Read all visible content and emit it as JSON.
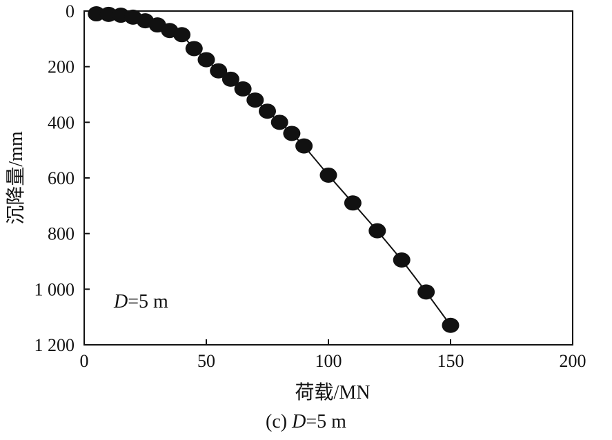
{
  "chart_data": {
    "type": "line",
    "xlabel": "荷载/MN",
    "ylabel": "沉降量/mm",
    "xlim": [
      0,
      200
    ],
    "ylim": [
      0,
      1200
    ],
    "y_inverted": true,
    "x_ticks": [
      "0",
      "50",
      "100",
      "150",
      "200"
    ],
    "y_ticks": [
      "0",
      "200",
      "400",
      "600",
      "800",
      "1 000",
      "1 200"
    ],
    "annotation": {
      "var": "D",
      "rest": "=5 m"
    },
    "marker": "filled-circle",
    "grid": false,
    "series": [
      {
        "x": [
          5,
          10,
          15,
          20,
          25,
          30,
          35,
          40,
          45,
          50,
          55,
          60,
          65,
          70,
          75,
          80,
          85,
          90,
          100,
          110,
          120,
          130,
          140,
          150
        ],
        "y": [
          10,
          12,
          15,
          22,
          35,
          50,
          70,
          85,
          135,
          175,
          215,
          245,
          280,
          320,
          360,
          400,
          440,
          485,
          590,
          690,
          790,
          895,
          1010,
          1130
        ]
      }
    ]
  },
  "caption": {
    "prefix": "(c) ",
    "var": "D",
    "rest": "=5 m"
  }
}
